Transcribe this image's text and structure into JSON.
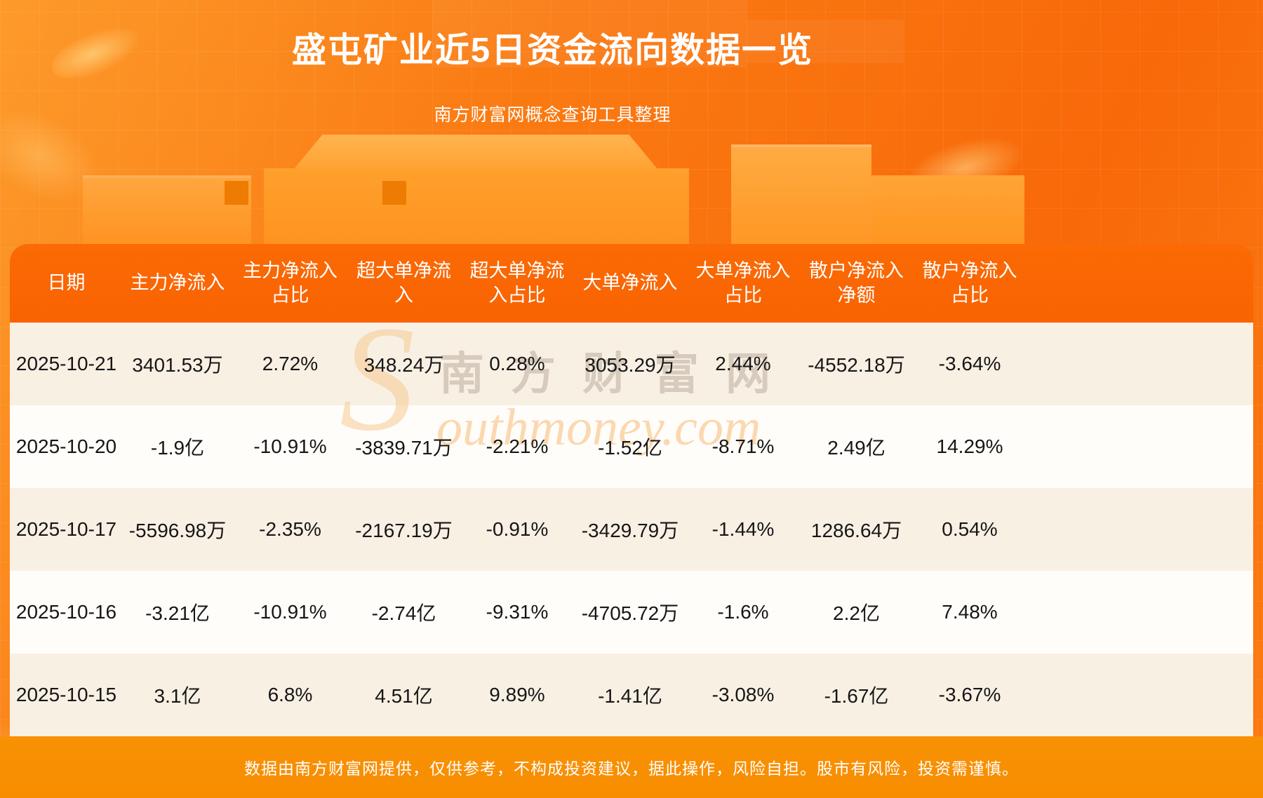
{
  "page": {
    "title": "盛屯矿业近5日资金流向数据一览",
    "subtitle": "南方财富网概念查询工具整理",
    "footer": "数据由南方财富网提供，仅供参考，不构成投资建议，据此操作，风险自担。股市有风险，投资需谨慎。",
    "watermark_s": "S",
    "watermark_cn": "南方财富网",
    "watermark_en": "outhmoney.com"
  },
  "colors": {
    "header_bg": "#f96302",
    "footer_bg": "#f88d00",
    "row_cream": "#f9f0e4",
    "row_white": "#fffdfa",
    "cell_text": "#161616",
    "background_orange": "#fa7a12",
    "title_text": "#ffffff"
  },
  "chart_data": {
    "type": "table",
    "title": "盛屯矿业近5日资金流向数据一览",
    "subtitle": "南方财富网概念查询工具整理",
    "columns": [
      "日期",
      "主力净流入",
      "主力净流入占比",
      "超大单净流入",
      "超大单净流入占比",
      "大单净流入",
      "大单净流入占比",
      "散户净流入净额",
      "散户净流入占比"
    ],
    "columns_display": [
      "日期",
      "主力净流入",
      "主力净流入\n占比",
      "超大单净流\n入",
      "超大单净流\n入占比",
      "大单净流入",
      "大单净流入\n占比",
      "散户净流入\n净额",
      "散户净流入\n占比"
    ],
    "rows": [
      [
        "2025-10-21",
        "3401.53万",
        "2.72%",
        "348.24万",
        "0.28%",
        "3053.29万",
        "2.44%",
        "-4552.18万",
        "-3.64%"
      ],
      [
        "2025-10-20",
        "-1.9亿",
        "-10.91%",
        "-3839.71万",
        "-2.21%",
        "-1.52亿",
        "-8.71%",
        "2.49亿",
        "14.29%"
      ],
      [
        "2025-10-17",
        "-5596.98万",
        "-2.35%",
        "-2167.19万",
        "-0.91%",
        "-3429.79万",
        "-1.44%",
        "1286.64万",
        "0.54%"
      ],
      [
        "2025-10-16",
        "-3.21亿",
        "-10.91%",
        "-2.74亿",
        "-9.31%",
        "-4705.72万",
        "-1.6%",
        "2.2亿",
        "7.48%"
      ],
      [
        "2025-10-15",
        "3.1亿",
        "6.8%",
        "4.51亿",
        "9.89%",
        "-1.41亿",
        "-3.08%",
        "-1.67亿",
        "-3.67%"
      ]
    ]
  }
}
